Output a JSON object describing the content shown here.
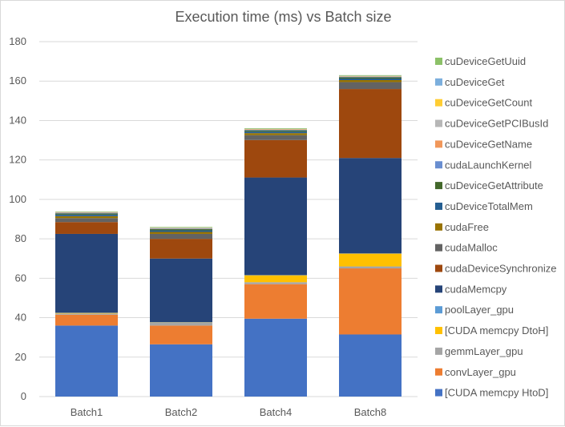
{
  "chart_data": {
    "type": "bar",
    "stacked": true,
    "title": "Execution time (ms) vs Batch size",
    "xlabel": "",
    "ylabel": "",
    "ylim": [
      0,
      180
    ],
    "yticks": [
      0,
      20,
      40,
      60,
      80,
      100,
      120,
      140,
      160,
      180
    ],
    "grid": true,
    "legend_position": "right",
    "categories": [
      "Batch1",
      "Batch2",
      "Batch4",
      "Batch8"
    ],
    "series": [
      {
        "name": "[CUDA memcpy HtoD]",
        "color": "#4472c4",
        "values": [
          36,
          26.5,
          39.5,
          31.5
        ]
      },
      {
        "name": "convLayer_gpu",
        "color": "#ed7d31",
        "values": [
          5.5,
          9.5,
          17.5,
          33.5
        ]
      },
      {
        "name": "gemmLayer_gpu",
        "color": "#a5a5a5",
        "values": [
          0.6,
          1.5,
          1.0,
          1.0
        ]
      },
      {
        "name": "[CUDA memcpy DtoH]",
        "color": "#ffc000",
        "values": [
          0.3,
          0.1,
          3.5,
          6.5
        ]
      },
      {
        "name": "poolLayer_gpu",
        "color": "#5b9bd5",
        "values": [
          0.1,
          0.1,
          0.1,
          0.1
        ]
      },
      {
        "name": "cudaMemcpy",
        "color": "#264478",
        "values": [
          40,
          32.3,
          49.5,
          48.4
        ]
      },
      {
        "name": "cudaDeviceSynchronize",
        "color": "#9e480e",
        "values": [
          6,
          10,
          19,
          35
        ]
      },
      {
        "name": "cudaMalloc",
        "color": "#636363",
        "values": [
          2,
          2.5,
          2.5,
          3.5
        ]
      },
      {
        "name": "cudaFree",
        "color": "#997300",
        "values": [
          1,
          1,
          1,
          1
        ]
      },
      {
        "name": "cuDeviceTotalMem",
        "color": "#255e91",
        "values": [
          0.8,
          0.8,
          0.8,
          0.8
        ]
      },
      {
        "name": "cuDeviceGetAttribute",
        "color": "#43682b",
        "values": [
          0.6,
          0.6,
          0.6,
          0.6
        ]
      },
      {
        "name": "cudaLaunchKernel",
        "color": "#698ed0",
        "values": [
          0.3,
          0.3,
          0.3,
          0.3
        ]
      },
      {
        "name": "cuDeviceGetName",
        "color": "#f1975a",
        "values": [
          0.2,
          0.2,
          0.2,
          0.2
        ]
      },
      {
        "name": "cuDeviceGetPCIBusId",
        "color": "#b7b7b7",
        "values": [
          0.1,
          0.1,
          0.1,
          0.1
        ]
      },
      {
        "name": "cuDeviceGetCount",
        "color": "#ffcd33",
        "values": [
          0.1,
          0.1,
          0.1,
          0.1
        ]
      },
      {
        "name": "cuDeviceGet",
        "color": "#7cafdd",
        "values": [
          0.1,
          0.1,
          0.1,
          0.1
        ]
      },
      {
        "name": "cuDeviceGetUuid",
        "color": "#8cc168",
        "values": [
          0.2,
          0.3,
          0.3,
          0.3
        ]
      }
    ]
  }
}
